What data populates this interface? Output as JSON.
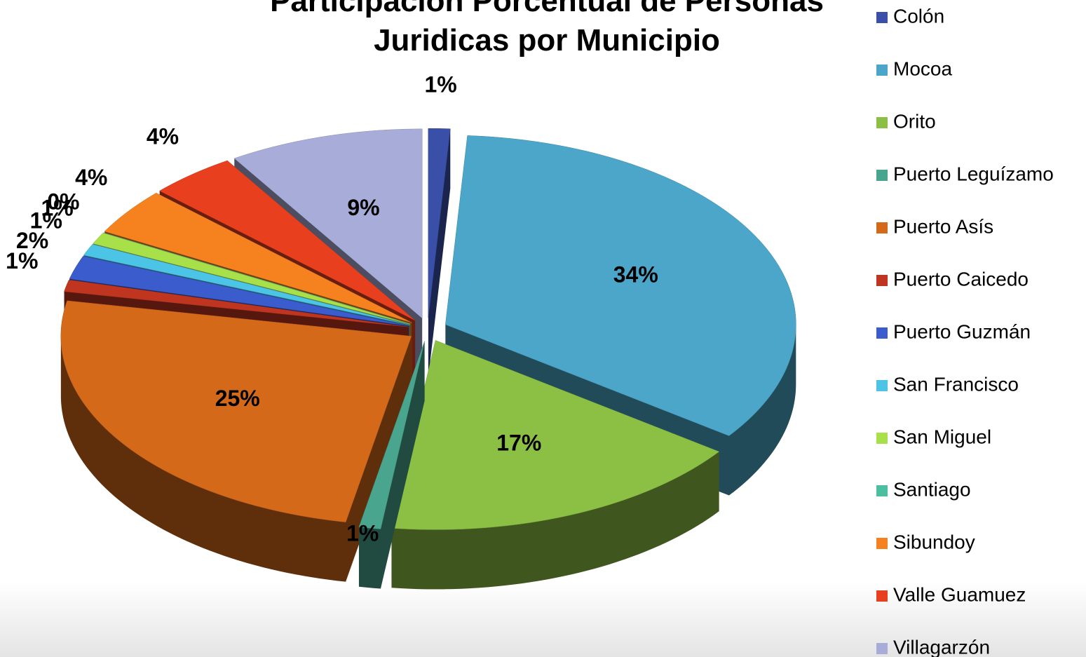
{
  "chart_data": {
    "type": "pie",
    "title": "Participación Porcentual de Personas Juridicas por Municipio",
    "categories": [
      "Colón",
      "Mocoa",
      "Orito",
      "Puerto  Leguízamo",
      "Puerto Asís",
      "Puerto Caicedo",
      "Puerto Guzmán",
      "San Francisco",
      "San Miguel",
      "Santiago",
      "Sibundoy",
      "Valle Guamuez",
      "Villagarzón"
    ],
    "values": [
      1,
      34,
      17,
      1,
      25,
      1,
      2,
      1,
      1,
      0,
      4,
      4,
      9
    ],
    "value_labels": [
      "1%",
      "34%",
      "17%",
      "1%",
      "25%",
      "1%",
      "2%",
      "1%",
      "1%",
      "0%",
      "4%",
      "4%",
      "9%"
    ],
    "colors": [
      "#3a4fa8",
      "#4ba6c9",
      "#8bc045",
      "#4aa58f",
      "#d4691a",
      "#c0351f",
      "#3a5ccc",
      "#4cc4e6",
      "#a8e04a",
      "#4cbfa0",
      "#f5821f",
      "#e8401f",
      "#a8acd8"
    ],
    "legend": "right"
  }
}
